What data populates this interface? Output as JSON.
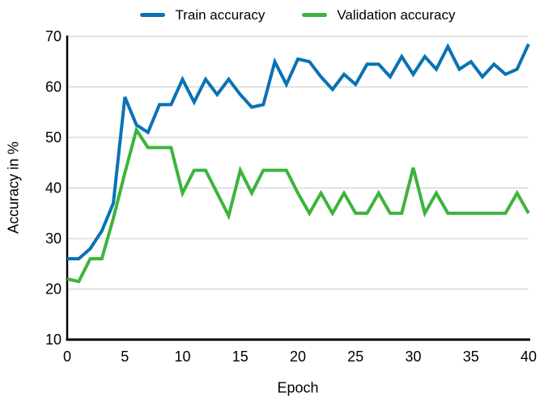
{
  "chart_data": {
    "type": "line",
    "title": "",
    "xlabel": "Epoch",
    "ylabel": "Accuracy in %",
    "xlim": [
      0,
      40
    ],
    "ylim": [
      10,
      70
    ],
    "x_ticks": [
      0,
      5,
      10,
      15,
      20,
      25,
      30,
      35,
      40
    ],
    "y_ticks": [
      10,
      20,
      30,
      40,
      50,
      60,
      70
    ],
    "grid": "horizontal",
    "legend_position": "top-center",
    "x": [
      0,
      1,
      2,
      3,
      4,
      5,
      6,
      7,
      8,
      9,
      10,
      11,
      12,
      13,
      14,
      15,
      16,
      17,
      18,
      19,
      20,
      21,
      22,
      23,
      24,
      25,
      26,
      27,
      28,
      29,
      30,
      31,
      32,
      33,
      34,
      35,
      36,
      37,
      38,
      39,
      40
    ],
    "series": [
      {
        "name": "Train accuracy",
        "color": "#0a72b4",
        "values": [
          26,
          26,
          28,
          31.5,
          37,
          58,
          52.5,
          51,
          56.5,
          56.5,
          61.5,
          57,
          61.5,
          58.5,
          61.5,
          58.5,
          56,
          56.5,
          65,
          60.5,
          65.5,
          65,
          62,
          59.5,
          62.5,
          60.5,
          64.5,
          64.5,
          62,
          66,
          62.5,
          66,
          63.5,
          68,
          63.5,
          65,
          62,
          64.5,
          62.5,
          63.5,
          68.5
        ]
      },
      {
        "name": "Validation accuracy",
        "color": "#3cb43c",
        "values": [
          22,
          21.5,
          26,
          26,
          34,
          43,
          51.5,
          48,
          48,
          48,
          39,
          43.5,
          43.5,
          39,
          34.5,
          43.5,
          39,
          43.5,
          43.5,
          43.5,
          39,
          35,
          39,
          35,
          39,
          35,
          35,
          39,
          35,
          35,
          44,
          35,
          39,
          35,
          35,
          35,
          35,
          35,
          35,
          39,
          35
        ]
      }
    ]
  },
  "colors": {
    "grid": "#c8c8c8",
    "axis": "#000000",
    "background": "#ffffff"
  }
}
